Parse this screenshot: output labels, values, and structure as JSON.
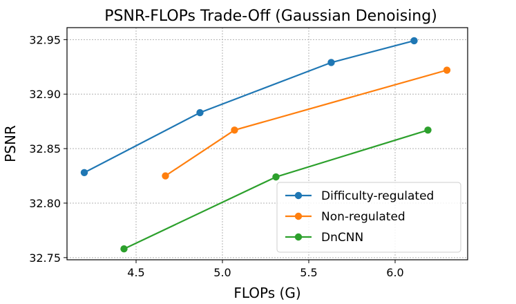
{
  "chart_data": {
    "type": "line",
    "title": "PSNR-FLOPs Trade-Off (Gaussian Denoising)",
    "xlabel": "FLOPs (G)",
    "ylabel": "PSNR",
    "xlim": [
      4.1,
      6.42
    ],
    "ylim": [
      32.748,
      32.961
    ],
    "xticks": [
      "4.5",
      "5.0",
      "5.5",
      "6.0"
    ],
    "yticks": [
      "32.75",
      "32.80",
      "32.85",
      "32.90",
      "32.95"
    ],
    "grid": true,
    "legend_position": "lower-right",
    "series": [
      {
        "name": "Difficulty-regulated",
        "color": "#1f77b4",
        "points": [
          [
            4.2,
            32.828
          ],
          [
            4.87,
            32.883
          ],
          [
            5.63,
            32.929
          ],
          [
            6.11,
            32.949
          ]
        ]
      },
      {
        "name": "Non-regulated",
        "color": "#ff7f0e",
        "points": [
          [
            4.67,
            32.825
          ],
          [
            5.07,
            32.867
          ],
          [
            6.3,
            32.922
          ]
        ]
      },
      {
        "name": "DnCNN",
        "color": "#2ca02c",
        "points": [
          [
            4.43,
            32.758
          ],
          [
            5.31,
            32.824
          ],
          [
            6.19,
            32.867
          ]
        ]
      }
    ]
  }
}
